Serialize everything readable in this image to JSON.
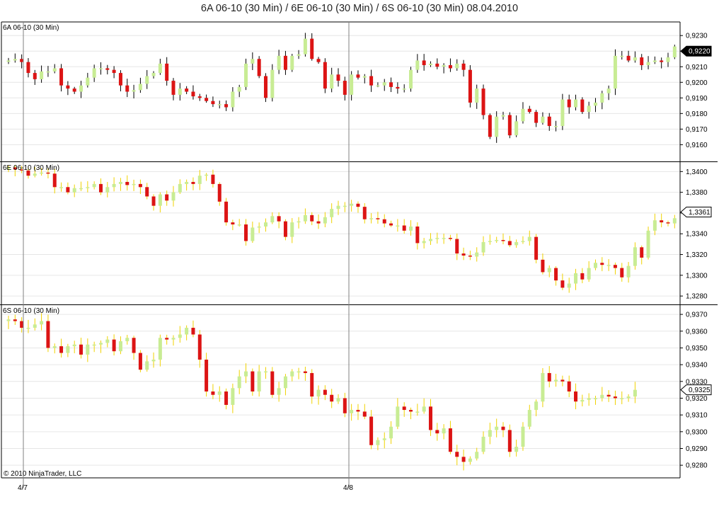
{
  "title": "6A 06-10 (30 Min) / 6E 06-10 (30 Min) / 6S 06-10 (30 Min)  08.04.2010",
  "copyright": "© 2010 NinjaTrader, LLC",
  "x_axis": {
    "date_labels": [
      "4/7",
      "4/8"
    ]
  },
  "colors": {
    "up": "#c8ec94",
    "down": "#dc1414",
    "panel1_wick": "#000000",
    "panel_wick_yellow": "#f0d200",
    "grid": "#e6e6e6",
    "frame": "#000000",
    "crosshair": "#808080",
    "last_price_badge_bg": "#000000",
    "last_price_badge_text": "#ffffff"
  },
  "chart_data": [
    {
      "type": "candlestick",
      "label": "6A 06-10 (30 Min)",
      "ylim": [
        0.9152,
        0.9236
      ],
      "y_ticks": [
        0.923,
        0.922,
        0.921,
        0.92,
        0.919,
        0.918,
        0.917,
        0.916
      ],
      "y_tick_labels": [
        "0,9230",
        "0,9220",
        "0,9210",
        "0,9200",
        "0,9190",
        "0,9180",
        "0,9170",
        "0,9160"
      ],
      "last_price": "0,9220",
      "last_price_value": 0.922,
      "last_price_style": "filled",
      "wick_color": "#000000",
      "closes": [
        0.9214,
        0.9215,
        0.9213,
        0.9206,
        0.9202,
        0.9207,
        0.9207,
        0.9209,
        0.9198,
        0.9196,
        0.9194,
        0.9198,
        0.9203,
        0.9209,
        0.9209,
        0.9208,
        0.9206,
        0.9198,
        0.9194,
        0.9195,
        0.9199,
        0.9204,
        0.9206,
        0.9212,
        0.9201,
        0.9192,
        0.9196,
        0.9194,
        0.9191,
        0.919,
        0.9188,
        0.9186,
        0.9186,
        0.9184,
        0.9194,
        0.9197,
        0.9212,
        0.9215,
        0.9204,
        0.919,
        0.9208,
        0.9217,
        0.9208,
        0.9217,
        0.9218,
        0.9228,
        0.9215,
        0.9213,
        0.9196,
        0.9205,
        0.9201,
        0.9192,
        0.9205,
        0.9203,
        0.9204,
        0.9198,
        0.9198,
        0.92,
        0.9197,
        0.9196,
        0.9196,
        0.9208,
        0.9214,
        0.9211,
        0.9212,
        0.921,
        0.9211,
        0.9209,
        0.9212,
        0.9208,
        0.9187,
        0.9196,
        0.9179,
        0.9165,
        0.9178,
        0.9179,
        0.9166,
        0.9175,
        0.9183,
        0.9181,
        0.9174,
        0.9178,
        0.9172,
        0.9172,
        0.9189,
        0.9184,
        0.9189,
        0.9181,
        0.9185,
        0.9187,
        0.9193,
        0.9196,
        0.9217,
        0.9217,
        0.9214,
        0.9216,
        0.9211,
        0.9213,
        0.9214,
        0.9213,
        0.9216,
        0.9223,
        0.9219,
        0.9212,
        0.9215,
        0.9222
      ]
    },
    {
      "type": "candlestick",
      "label": "6E 06-10 (30 Min)",
      "ylim": [
        1.3276,
        1.3405
      ],
      "y_ticks": [
        1.34,
        1.338,
        1.336,
        1.334,
        1.332,
        1.33,
        1.328
      ],
      "y_tick_labels": [
        "1,3400",
        "1,3380",
        "1,3360",
        "1,3340",
        "1,3320",
        "1,3300",
        "1,3280"
      ],
      "last_price": "1,3361",
      "last_price_value": 1.3361,
      "last_price_style": "outline",
      "wick_color": "#f0d200",
      "closes": [
        1.3404,
        1.3402,
        1.3401,
        1.3396,
        1.3398,
        1.3399,
        1.3398,
        1.3385,
        1.3385,
        1.338,
        1.3384,
        1.3384,
        1.3385,
        1.3388,
        1.338,
        1.3385,
        1.3388,
        1.339,
        1.3387,
        1.3388,
        1.3385,
        1.3376,
        1.3367,
        1.3378,
        1.3372,
        1.338,
        1.3388,
        1.339,
        1.3388,
        1.3396,
        1.3397,
        1.3388,
        1.3371,
        1.3351,
        1.3349,
        1.3349,
        1.3333,
        1.3346,
        1.3347,
        1.3351,
        1.3357,
        1.3352,
        1.3337,
        1.3351,
        1.3352,
        1.3358,
        1.3352,
        1.335,
        1.3356,
        1.3364,
        1.3367,
        1.3367,
        1.3369,
        1.3366,
        1.3354,
        1.3355,
        1.3354,
        1.335,
        1.3348,
        1.3348,
        1.3343,
        1.3347,
        1.3331,
        1.3333,
        1.3335,
        1.3336,
        1.3336,
        1.3335,
        1.3321,
        1.3319,
        1.3318,
        1.3322,
        1.3332,
        1.3333,
        1.3334,
        1.3333,
        1.3329,
        1.3332,
        1.3333,
        1.3337,
        1.3315,
        1.3303,
        1.3307,
        1.3295,
        1.3288,
        1.3292,
        1.3302,
        1.3296,
        1.3307,
        1.3312,
        1.331,
        1.331,
        1.3307,
        1.3298,
        1.3309,
        1.3327,
        1.3317,
        1.3343,
        1.3353,
        1.3351,
        1.335,
        1.3355,
        1.3349,
        1.3349,
        1.3351,
        1.3355,
        1.3355,
        1.3356,
        1.3353,
        1.3361
      ]
    },
    {
      "type": "candlestick",
      "label": "6S 06-10 (30 Min)",
      "ylim": [
        0.9275,
        0.9373
      ],
      "y_ticks": [
        0.937,
        0.936,
        0.935,
        0.934,
        0.933,
        0.932,
        0.931,
        0.93,
        0.929,
        0.928
      ],
      "y_tick_labels": [
        "0,9370",
        "0,9360",
        "0,9350",
        "0,9340",
        "0,9330",
        "0,9320",
        "0,9310",
        "0,9300",
        "0,9290",
        "0,9280"
      ],
      "last_price": "0,9325",
      "last_price_value": 0.9325,
      "last_price_style": "outline",
      "wick_color": "#f0d200",
      "closes": [
        0.9367,
        0.9366,
        0.9362,
        0.9362,
        0.9364,
        0.9366,
        0.935,
        0.9351,
        0.9347,
        0.9351,
        0.9352,
        0.9346,
        0.9352,
        0.9352,
        0.9353,
        0.9355,
        0.9348,
        0.9354,
        0.9356,
        0.9347,
        0.9337,
        0.9342,
        0.9343,
        0.9356,
        0.9355,
        0.9356,
        0.9358,
        0.9362,
        0.9358,
        0.9343,
        0.9324,
        0.9322,
        0.9324,
        0.9316,
        0.9326,
        0.9333,
        0.9336,
        0.9324,
        0.9336,
        0.9336,
        0.9322,
        0.9326,
        0.9333,
        0.9336,
        0.9336,
        0.9335,
        0.9321,
        0.9325,
        0.9322,
        0.9318,
        0.932,
        0.9311,
        0.9313,
        0.9312,
        0.9309,
        0.9292,
        0.9295,
        0.9296,
        0.9303,
        0.9315,
        0.9313,
        0.9312,
        0.9312,
        0.9315,
        0.9301,
        0.9299,
        0.9302,
        0.9288,
        0.9285,
        0.9282,
        0.9284,
        0.9288,
        0.9297,
        0.9301,
        0.9303,
        0.9301,
        0.9288,
        0.9291,
        0.9303,
        0.9313,
        0.9318,
        0.9335,
        0.933,
        0.9331,
        0.933,
        0.9324,
        0.9318,
        0.9319,
        0.932,
        0.932,
        0.9322,
        0.9321,
        0.932,
        0.932,
        0.9321,
        0.9325
      ]
    }
  ]
}
